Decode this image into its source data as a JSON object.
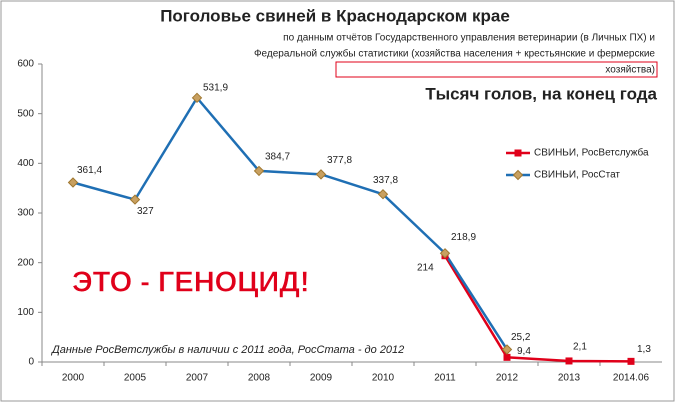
{
  "chart_data": {
    "type": "line",
    "title": "Поголовье свиней в Краснодарском крае",
    "subtitle": [
      "по данным отчётов Государственного управления ветеринарии (в Личных ПХ) и",
      "Федеральной службы статистики (хозяйства населения + крестьянские и фермерские",
      "хозяйства)"
    ],
    "annotations": [
      "Тысяч голов, на конец года",
      "ЭТО - ГЕНОЦИД!",
      "Данные РосВетслужбы в наличии с 2011 года, РосСтата - до 2012"
    ],
    "categories": [
      "2000",
      "2005",
      "2007",
      "2008",
      "2009",
      "2010",
      "2011",
      "2012",
      "2013",
      "2014.06"
    ],
    "series": [
      {
        "name": "СВИНЬИ, РосВетслужба",
        "color": "#e0001a",
        "marker": "square",
        "values": [
          null,
          null,
          null,
          null,
          null,
          null,
          214,
          9.4,
          2.1,
          1.3
        ],
        "value_labels": [
          null,
          null,
          null,
          null,
          null,
          null,
          "214",
          "9,4",
          "2,1",
          "1,3"
        ]
      },
      {
        "name": "СВИНЬИ, РосСтат",
        "color": "#1f6fb4",
        "marker": "diamond",
        "values": [
          361.4,
          327,
          531.9,
          384.7,
          377.8,
          337.8,
          218.9,
          25.2,
          null,
          null
        ],
        "value_labels": [
          "361,4",
          "327",
          "531,9",
          "384,7",
          "377,8",
          "337,8",
          "218,9",
          "25,2",
          null,
          null
        ]
      }
    ],
    "ylim": [
      0,
      600
    ],
    "yticks": [
      0,
      100,
      200,
      300,
      400,
      500,
      600
    ],
    "grid": false,
    "legend": "right"
  }
}
